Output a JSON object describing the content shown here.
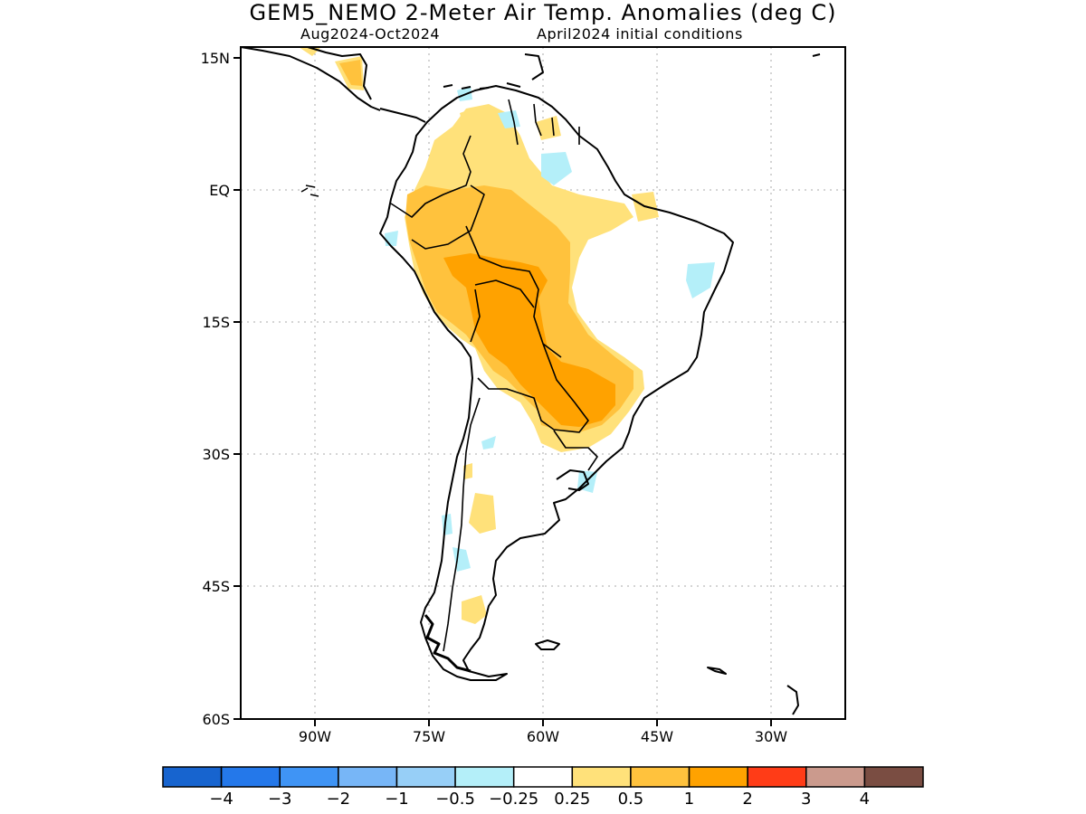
{
  "title": "GEM5_NEMO 2-Meter Air Temp. Anomalies (deg C)",
  "subtitle_left": "Aug2024-Oct2024",
  "subtitle_right": "April2024 initial conditions",
  "lat_labels": [
    "15N",
    "EQ",
    "15S",
    "30S",
    "45S",
    "60S"
  ],
  "lon_labels": [
    "90W",
    "75W",
    "60W",
    "45W",
    "30W"
  ],
  "colorbar": {
    "colors": [
      "#1764cf",
      "#2478ea",
      "#3f94f5",
      "#77b6f7",
      "#97cff7",
      "#b4eff9",
      "#ffffff",
      "#ffe17a",
      "#ffc23d",
      "#ffa200",
      "#ff3c17",
      "#cb9a8d",
      "#7a4d42"
    ],
    "labels": [
      "-4",
      "-3",
      "-2",
      "-1",
      "-0.5",
      "-0.25",
      "0.25",
      "0.5",
      "1",
      "2",
      "3",
      "4"
    ]
  },
  "legend_colors": {
    "anom_0_25_to_0_5": "#ffe17a",
    "anom_0_5_to_1": "#ffc23d",
    "anom_1_to_2": "#ffa200",
    "anom_neg_0_5_to_neg_0_25": "#b4eff9"
  }
}
